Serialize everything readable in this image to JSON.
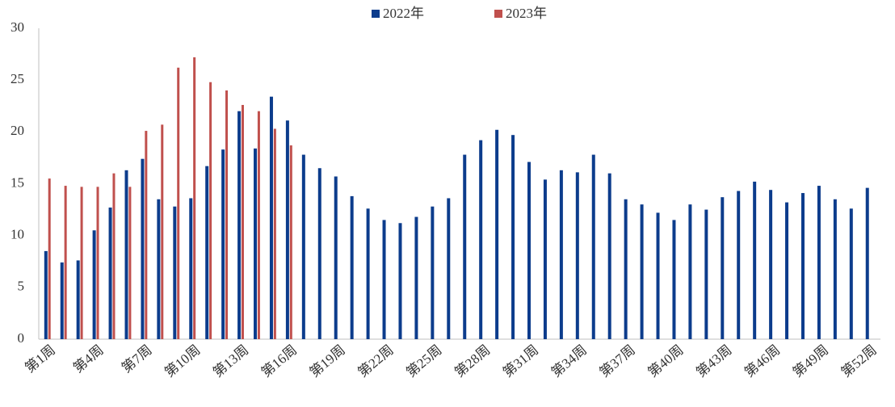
{
  "chart_data": {
    "type": "bar",
    "categories": [
      "第1周",
      null,
      null,
      "第4周",
      null,
      null,
      "第7周",
      null,
      null,
      "第10周",
      null,
      null,
      "第13周",
      null,
      null,
      "第16周",
      null,
      null,
      "第19周",
      null,
      null,
      "第22周",
      null,
      null,
      "第25周",
      null,
      null,
      "第28周",
      null,
      null,
      "第31周",
      null,
      null,
      "第34周",
      null,
      null,
      "第37周",
      null,
      null,
      "第40周",
      null,
      null,
      "第43周",
      null,
      null,
      "第46周",
      null,
      null,
      "第49周",
      null,
      null,
      "第52周"
    ],
    "series": [
      {
        "name": "2022年",
        "color": "#0c3c8c",
        "values": [
          8.5,
          7.4,
          7.6,
          10.5,
          12.7,
          16.3,
          17.4,
          13.5,
          12.8,
          13.6,
          16.7,
          18.3,
          22.0,
          18.4,
          23.4,
          21.1,
          17.8,
          16.5,
          15.7,
          13.8,
          12.6,
          11.5,
          11.2,
          11.8,
          12.8,
          13.6,
          17.8,
          19.2,
          20.2,
          19.7,
          17.1,
          15.4,
          16.3,
          16.1,
          17.8,
          16.0,
          13.5,
          13.0,
          12.2,
          11.5,
          13.0,
          12.5,
          13.7,
          14.3,
          15.2,
          14.4,
          13.2,
          14.1,
          14.8,
          13.5,
          12.6,
          14.6
        ]
      },
      {
        "name": "2023年",
        "color": "#c0504d",
        "values": [
          15.5,
          14.8,
          14.7,
          14.7,
          16.0,
          14.7,
          20.1,
          20.7,
          26.2,
          27.2,
          24.8,
          24.0,
          22.6,
          22.0,
          20.3,
          18.7,
          null,
          null,
          null,
          null,
          null,
          null,
          null,
          null,
          null,
          null,
          null,
          null,
          null,
          null,
          null,
          null,
          null,
          null,
          null,
          null,
          null,
          null,
          null,
          null,
          null,
          null,
          null,
          null,
          null,
          null,
          null,
          null,
          null,
          null,
          null,
          null
        ]
      }
    ],
    "ylim": [
      0,
      30
    ],
    "yticks": [
      0,
      5,
      10,
      15,
      20,
      25,
      30
    ],
    "grid": false,
    "legend": "top"
  }
}
